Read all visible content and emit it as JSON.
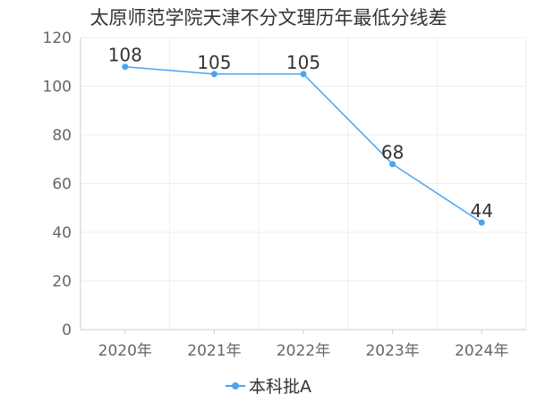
{
  "chart_data": {
    "type": "line",
    "title": "太原师范学院天津不分文理历年最低分线差",
    "categories": [
      "2020年",
      "2021年",
      "2022年",
      "2023年",
      "2024年"
    ],
    "series": [
      {
        "name": "本科批A",
        "values": [
          108,
          105,
          105,
          68,
          44
        ]
      }
    ],
    "ylim": [
      0,
      120
    ],
    "yticks": [
      0,
      20,
      40,
      60,
      80,
      100,
      120
    ],
    "grid": true,
    "legend": "bottom",
    "colors": {
      "series": "#4aa3f0",
      "grid": "#eeeeee",
      "axis": "#cccccc"
    }
  }
}
